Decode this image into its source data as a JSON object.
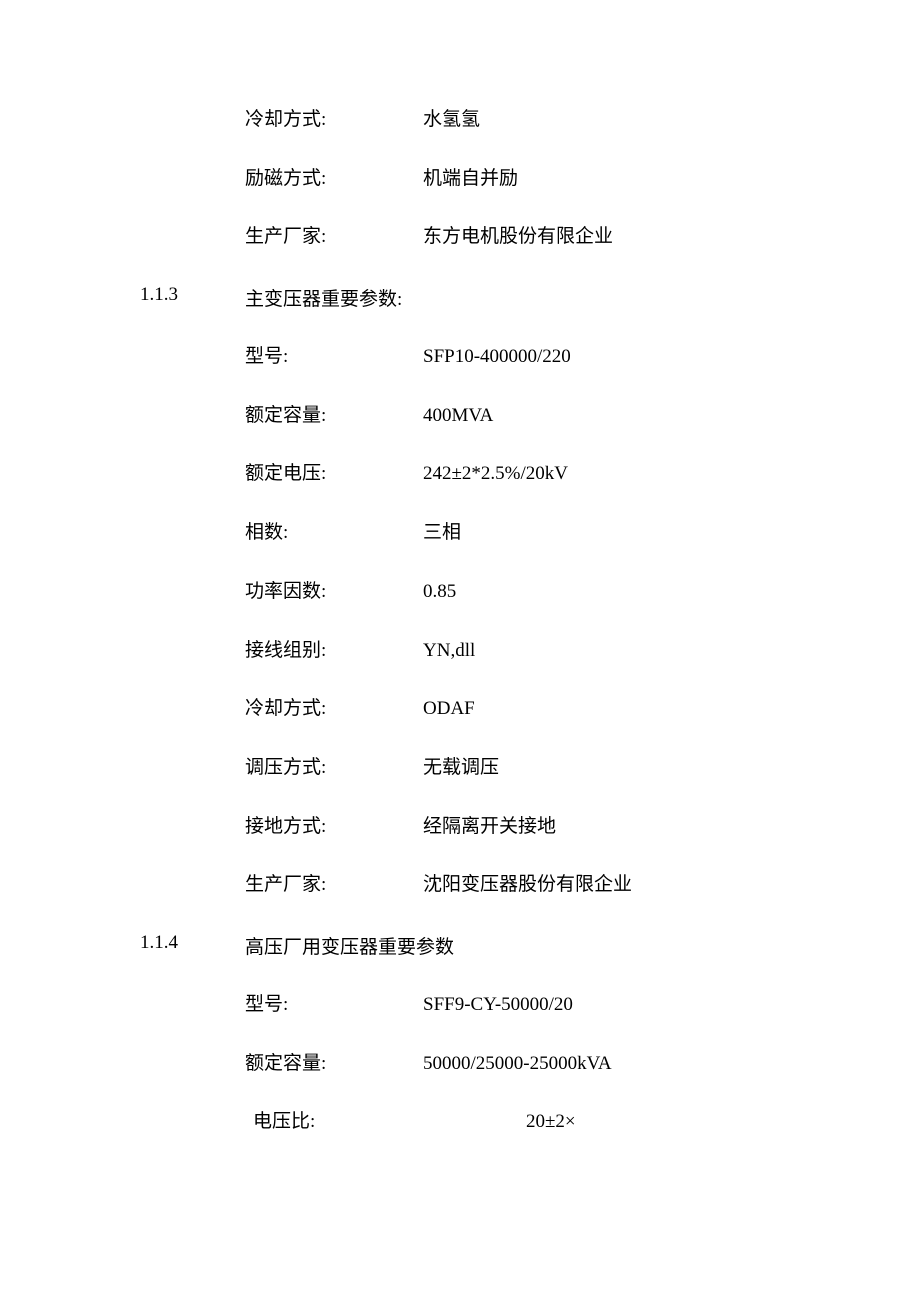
{
  "intro_rows": [
    {
      "label": "冷却方式:",
      "value": "水氢氢",
      "isCN": true
    },
    {
      "label": "励磁方式:",
      "value": "机端自并励",
      "isCN": true
    },
    {
      "label": "生产厂家:",
      "value": "东方电机股份有限企业",
      "isCN": true
    }
  ],
  "section113": {
    "num": "1.1.3",
    "title": "主变压器重要参数:"
  },
  "rows113": [
    {
      "label": "型号:",
      "value": "SFP10-400000/220",
      "isCN": false
    },
    {
      "label": "额定容量:",
      "value": "400MVA",
      "isCN": false
    },
    {
      "label": "额定电压:",
      "value": "242±2*2.5%/20kV",
      "isCN": false
    },
    {
      "label": "相数:",
      "value": "三相",
      "isCN": true
    },
    {
      "label": "功率因数:",
      "value": "0.85",
      "isCN": false
    },
    {
      "label": "接线组别:",
      "value": "YN,dll",
      "isCN": false
    },
    {
      "label": "冷却方式:",
      "value": "ODAF",
      "isCN": false
    },
    {
      "label": "调压方式:",
      "value": "无载调压",
      "isCN": true
    },
    {
      "label": "接地方式:",
      "value": "经隔离开关接地",
      "isCN": true
    },
    {
      "label": "生产厂家:",
      "value": "沈阳变压器股份有限企业",
      "isCN": true
    }
  ],
  "section114": {
    "num": "1.1.4",
    "title": "高压厂用变压器重要参数"
  },
  "rows114": [
    {
      "label": "型号:",
      "value": "SFF9-CY-50000/20",
      "isCN": false
    },
    {
      "label": "额定容量:",
      "value": "50000/25000-25000kVA",
      "isCN": false
    }
  ],
  "last_row": {
    "label": "电压比:",
    "value": "20±2×"
  },
  "colors": {
    "background": "#ffffff",
    "text": "#000000"
  },
  "typography": {
    "base_fontsize": 19,
    "cn_font": "SimSun",
    "latin_font": "Times New Roman"
  }
}
